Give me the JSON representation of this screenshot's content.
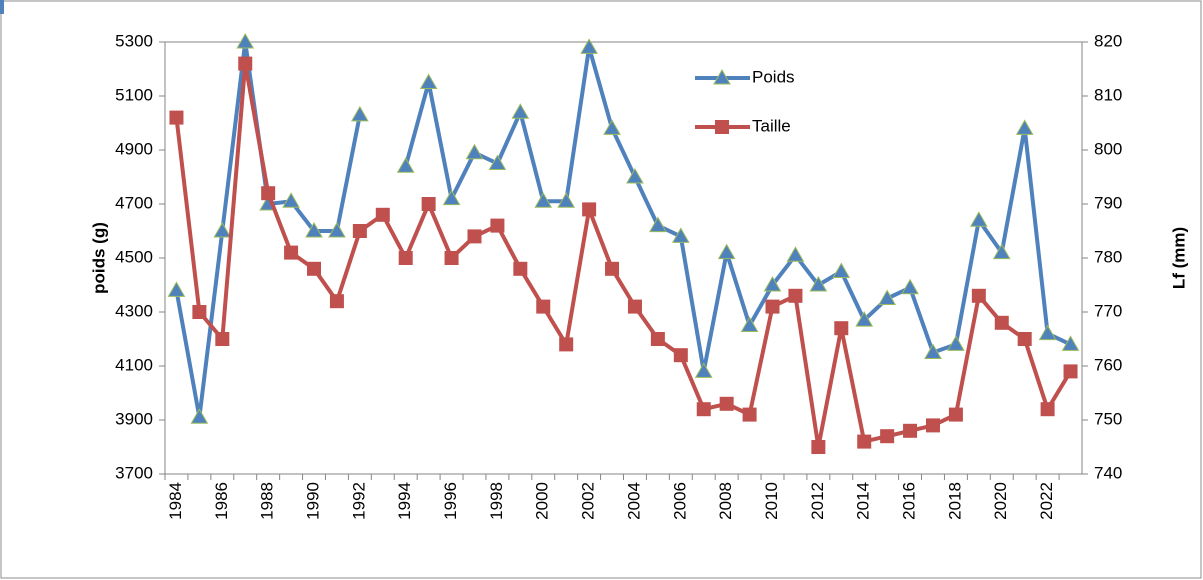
{
  "chart_data": {
    "type": "line",
    "categories": [
      "1984",
      null,
      "1986",
      null,
      "1988",
      null,
      "1990",
      null,
      "1992",
      null,
      "1994",
      null,
      "1996",
      null,
      "1998",
      null,
      "2000",
      null,
      "2002",
      null,
      "2004",
      null,
      "2006",
      null,
      "2008",
      null,
      "2010",
      null,
      "2012",
      null,
      "2014",
      null,
      "2016",
      null,
      "2018",
      null,
      "2020",
      null,
      "2022",
      null
    ],
    "ylabel": "poids (g)",
    "y2label": "Lf (mm)",
    "ylim": [
      3700,
      5300
    ],
    "yticks": [
      3700,
      3900,
      4100,
      4300,
      4500,
      4700,
      4900,
      5100,
      5300
    ],
    "y2lim": [
      740,
      820
    ],
    "y2ticks": [
      740,
      750,
      760,
      770,
      780,
      790,
      800,
      810,
      820
    ],
    "legend": "upper-right",
    "series": [
      {
        "name": "Poids",
        "color": "#4f81bd",
        "marker": "triangle",
        "values": [
          4380,
          3910,
          4600,
          5300,
          4700,
          4710,
          4600,
          4600,
          5030,
          null,
          4840,
          5150,
          4720,
          4890,
          4850,
          5040,
          4710,
          4710,
          5280,
          4980,
          4800,
          4620,
          4580,
          4080,
          4520,
          4250,
          4400,
          4510,
          4400,
          4450,
          4270,
          4350,
          4390,
          4150,
          4180,
          4640,
          4520,
          4980,
          4220,
          4180
        ]
      },
      {
        "name": "Taille",
        "color": "#c0504d",
        "marker": "square",
        "axis": "y2",
        "values": [
          806,
          770,
          765,
          816,
          792,
          781,
          778,
          772,
          785,
          788,
          780,
          790,
          780,
          784,
          786,
          778,
          771,
          764,
          789,
          778,
          771,
          765,
          762,
          752,
          753,
          751,
          771,
          773,
          745,
          767,
          746,
          747,
          748,
          749,
          751,
          773,
          768,
          765,
          752,
          759
        ]
      }
    ]
  }
}
